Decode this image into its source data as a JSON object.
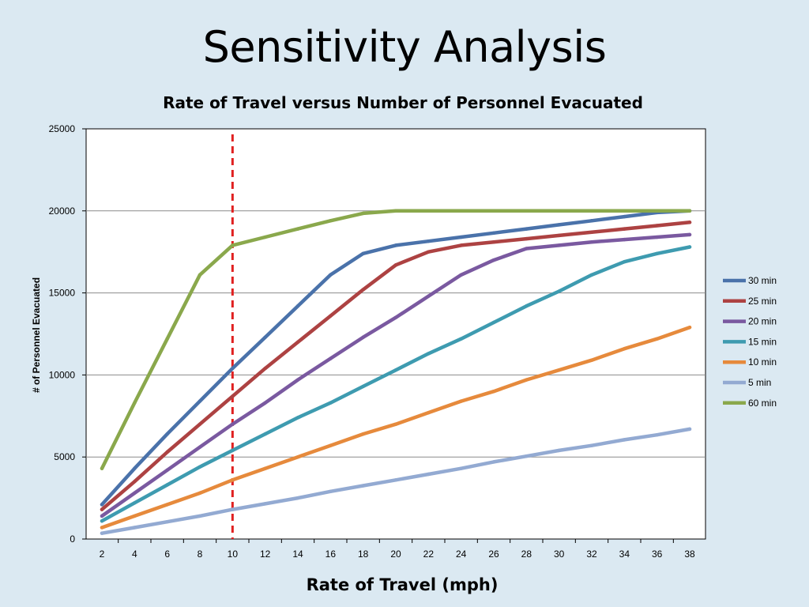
{
  "slide": {
    "title": "Sensitivity Analysis"
  },
  "chart_data": {
    "type": "line",
    "title": "Rate of Travel versus Number of Personnel Evacuated",
    "xlabel": "Rate of Travel (mph)",
    "ylabel": "# of Personnel Evacuated",
    "x": [
      2,
      4,
      6,
      8,
      10,
      12,
      14,
      16,
      18,
      20,
      22,
      24,
      26,
      28,
      30,
      32,
      34,
      36,
      38
    ],
    "ylim": [
      0,
      25000
    ],
    "yticks": [
      0,
      5000,
      10000,
      15000,
      20000,
      25000
    ],
    "grid": true,
    "legend_position": "right",
    "reference_line": {
      "x": 10,
      "color": "#e02020",
      "style": "dashed"
    },
    "series": [
      {
        "name": "30 min",
        "color": "#4a72aa",
        "values": [
          2100,
          4300,
          6400,
          8400,
          10400,
          12300,
          14200,
          16100,
          17400,
          17900,
          18150,
          18400,
          18650,
          18900,
          19150,
          19400,
          19650,
          19900,
          20000
        ]
      },
      {
        "name": "25 min",
        "color": "#ad4242",
        "values": [
          1800,
          3500,
          5300,
          7000,
          8700,
          10400,
          12000,
          13600,
          15200,
          16700,
          17500,
          17900,
          18100,
          18300,
          18500,
          18700,
          18900,
          19100,
          19300
        ]
      },
      {
        "name": "20 min",
        "color": "#7a59a0",
        "values": [
          1400,
          2800,
          4200,
          5600,
          7000,
          8300,
          9700,
          11000,
          12300,
          13500,
          14800,
          16100,
          17000,
          17700,
          17900,
          18100,
          18250,
          18400,
          18550
        ]
      },
      {
        "name": "15 min",
        "color": "#3e9bb0",
        "values": [
          1100,
          2200,
          3300,
          4400,
          5400,
          6400,
          7400,
          8300,
          9300,
          10300,
          11300,
          12200,
          13200,
          14200,
          15100,
          16100,
          16900,
          17400,
          17800
        ]
      },
      {
        "name": "10 min",
        "color": "#e68a3c",
        "values": [
          700,
          1400,
          2100,
          2800,
          3600,
          4300,
          5000,
          5700,
          6400,
          7000,
          7700,
          8400,
          9000,
          9700,
          10300,
          10900,
          11600,
          12200,
          12900
        ]
      },
      {
        "name": "5 min",
        "color": "#93aad2",
        "values": [
          350,
          700,
          1050,
          1400,
          1800,
          2150,
          2500,
          2900,
          3250,
          3600,
          3950,
          4300,
          4700,
          5050,
          5400,
          5700,
          6050,
          6350,
          6700
        ]
      },
      {
        "name": "60 min",
        "color": "#8aa84c",
        "values": [
          4300,
          8300,
          12200,
          16100,
          17900,
          18400,
          18900,
          19400,
          19850,
          20000,
          20000,
          20000,
          20000,
          20000,
          20000,
          20000,
          20000,
          20000,
          20000
        ]
      }
    ]
  }
}
